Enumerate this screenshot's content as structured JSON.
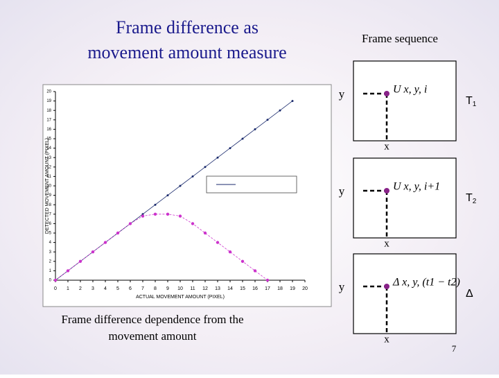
{
  "slide": {
    "title_lines": [
      "Frame difference as",
      "movement amount measure"
    ],
    "caption_lines": [
      "Frame difference dependence from the",
      "movement  amount"
    ],
    "page_number": "7"
  },
  "frames": {
    "heading": "Frame sequence",
    "items": [
      {
        "y_label": "y",
        "x_label": "x",
        "formula": "U x, y, i",
        "tag": "T",
        "tag_sub": "1"
      },
      {
        "y_label": "y",
        "x_label": "x",
        "formula": "U x, y, i+1",
        "tag": "T",
        "tag_sub": "2"
      },
      {
        "y_label": "y",
        "x_label": "x",
        "formula": "Δ x, y, (t1 − t2)",
        "tag": "Δ",
        "tag_sub": null
      }
    ]
  },
  "chart_data": {
    "type": "line",
    "x_label": "ACTUAL MOVEMENT AMOUNT (PIXEL)",
    "y_label": "DETECTED MOVEMENT AMOUNT (PIXEL)",
    "xlim": [
      0,
      20
    ],
    "ylim": [
      0,
      20
    ],
    "xticks": [
      0,
      1,
      2,
      3,
      4,
      5,
      6,
      7,
      8,
      9,
      10,
      11,
      12,
      13,
      14,
      15,
      16,
      17,
      18,
      19,
      20
    ],
    "yticks": [
      0,
      1,
      2,
      3,
      4,
      5,
      6,
      7,
      8,
      9,
      10,
      11,
      12,
      13,
      14,
      15,
      16,
      17,
      18,
      19,
      20
    ],
    "series": [
      {
        "color": "#1a2a6c",
        "x": [
          0,
          1,
          2,
          3,
          4,
          5,
          6,
          7,
          8,
          9,
          10,
          11,
          12,
          13,
          14,
          15,
          16,
          17,
          18,
          19
        ],
        "values": [
          0,
          1,
          2,
          3,
          4,
          5,
          6,
          7,
          8,
          9,
          10,
          11,
          12,
          13,
          14,
          15,
          16,
          17,
          18,
          19
        ]
      },
      {
        "color": "#cc33cc",
        "x": [
          0,
          1,
          2,
          3,
          4,
          5,
          6,
          7,
          8,
          9,
          10,
          11,
          12,
          13,
          14,
          15,
          16,
          17
        ],
        "values": [
          0,
          1,
          2,
          3,
          4,
          5,
          6,
          6.8,
          7,
          7,
          6.8,
          6,
          5,
          4,
          3,
          2,
          1,
          0
        ]
      }
    ]
  }
}
